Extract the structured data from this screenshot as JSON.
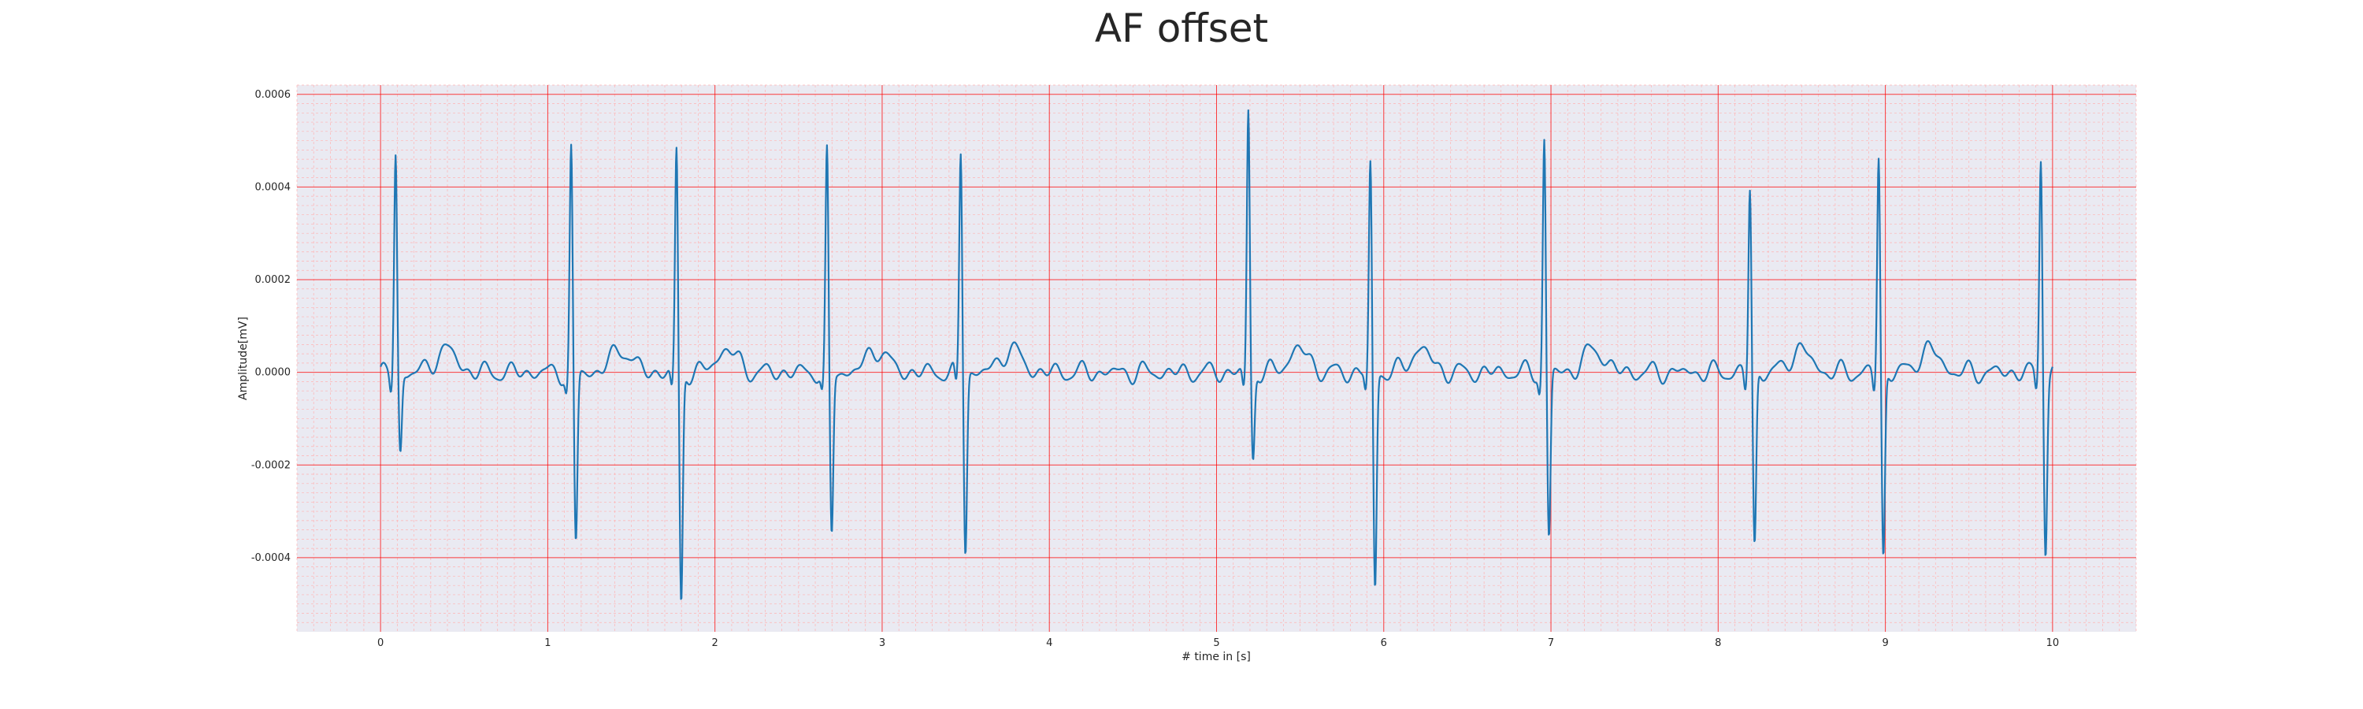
{
  "chart_data": {
    "type": "line",
    "title": "AF offset",
    "xlabel": "# time in [s]",
    "ylabel": "Amplitude[mV]",
    "xlim": [
      -0.5,
      10.5
    ],
    "ylim": [
      -0.00056,
      0.00062
    ],
    "xticks": [
      0,
      1,
      2,
      3,
      4,
      5,
      6,
      7,
      8,
      9,
      10
    ],
    "yticks": [
      -0.0004,
      -0.0002,
      0.0,
      0.0002,
      0.0004,
      0.0006
    ],
    "ytick_labels": [
      "-0.0004",
      "-0.0002",
      "0.0000",
      "0.0002",
      "0.0004",
      "0.0006"
    ],
    "grid": {
      "major": true,
      "minor": true,
      "color": "#ff0000"
    },
    "background": "#eaeaf2",
    "line_color": "#1f77b4",
    "beats": [
      {
        "t": 0.09,
        "r": 0.00047,
        "s": -0.000175
      },
      {
        "t": 1.14,
        "r": 0.00048,
        "s": -0.000375
      },
      {
        "t": 1.77,
        "r": 0.00048,
        "s": -0.000505
      },
      {
        "t": 2.67,
        "r": 0.00047,
        "s": -0.000355
      },
      {
        "t": 3.47,
        "r": 0.00048,
        "s": -0.000385
      },
      {
        "t": 5.19,
        "r": 0.000565,
        "s": -0.00019
      },
      {
        "t": 5.92,
        "r": 0.00045,
        "s": -0.00047
      },
      {
        "t": 6.96,
        "r": 0.000505,
        "s": -0.00036
      },
      {
        "t": 8.19,
        "r": 0.0004,
        "s": -0.00038
      },
      {
        "t": 8.96,
        "r": 0.00047,
        "s": -0.000405
      },
      {
        "t": 9.93,
        "r": 0.00047,
        "s": -0.00038
      }
    ]
  }
}
